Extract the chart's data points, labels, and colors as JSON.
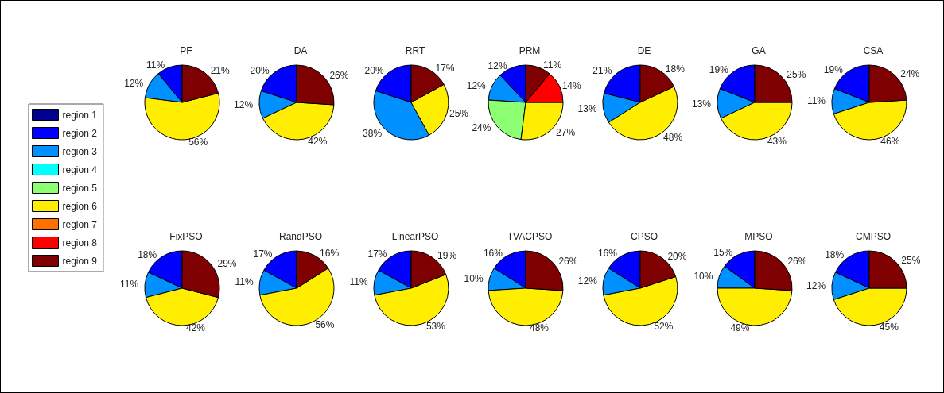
{
  "chart_data": {
    "type": "pie",
    "legend": "left",
    "categories": [
      "region 1",
      "region 2",
      "region 3",
      "region 4",
      "region 5",
      "region 6",
      "region 7",
      "region 8",
      "region 9"
    ],
    "colors": [
      "#00008f",
      "#0000ff",
      "#0090ff",
      "#00ffff",
      "#8cff73",
      "#ffee00",
      "#ff7000",
      "#ff0000",
      "#7f0000"
    ],
    "series": [
      {
        "name": "PF",
        "values": [
          null,
          11,
          12,
          null,
          null,
          56,
          null,
          null,
          21
        ],
        "value_labels": [
          null,
          "11%",
          "12%",
          null,
          null,
          "56%",
          null,
          null,
          "21%"
        ]
      },
      {
        "name": "DA",
        "values": [
          null,
          20,
          12,
          null,
          null,
          42,
          null,
          null,
          26
        ],
        "value_labels": [
          null,
          "20%",
          "12%",
          null,
          null,
          "42%",
          null,
          null,
          "26%"
        ]
      },
      {
        "name": "RRT",
        "values": [
          null,
          20,
          38,
          null,
          null,
          25,
          null,
          null,
          17
        ],
        "value_labels": [
          null,
          "20%",
          "38%",
          null,
          null,
          "25%",
          null,
          null,
          "17%"
        ]
      },
      {
        "name": "PRM",
        "values": [
          null,
          12,
          12,
          null,
          24,
          27,
          null,
          14,
          11
        ],
        "value_labels": [
          null,
          "12%",
          "12%",
          null,
          "24%",
          "27%",
          null,
          "14%",
          "11%"
        ]
      },
      {
        "name": "DE",
        "values": [
          null,
          21,
          13,
          null,
          null,
          48,
          null,
          null,
          18
        ],
        "value_labels": [
          null,
          "21%",
          "13%",
          null,
          null,
          "48%",
          null,
          null,
          "18%"
        ]
      },
      {
        "name": "GA",
        "values": [
          null,
          19,
          13,
          null,
          null,
          43,
          null,
          null,
          25
        ],
        "value_labels": [
          null,
          "19%",
          "13%",
          null,
          null,
          "43%",
          null,
          null,
          "25%"
        ]
      },
      {
        "name": "CSA",
        "values": [
          null,
          19,
          11,
          null,
          null,
          46,
          null,
          null,
          24
        ],
        "value_labels": [
          null,
          "19%",
          "11%",
          null,
          null,
          "46%",
          null,
          null,
          "24%"
        ]
      },
      {
        "name": "FixPSO",
        "values": [
          null,
          18,
          11,
          null,
          null,
          42,
          null,
          null,
          29
        ],
        "value_labels": [
          null,
          "18%",
          "11%",
          null,
          null,
          "42%",
          null,
          null,
          "29%"
        ]
      },
      {
        "name": "RandPSO",
        "values": [
          null,
          17,
          11,
          null,
          null,
          56,
          null,
          null,
          16
        ],
        "value_labels": [
          null,
          "17%",
          "11%",
          null,
          null,
          "56%",
          null,
          null,
          "16%"
        ]
      },
      {
        "name": "LinearPSO",
        "values": [
          null,
          17,
          11,
          null,
          null,
          53,
          null,
          null,
          19
        ],
        "value_labels": [
          null,
          "17%",
          "11%",
          null,
          null,
          "53%",
          null,
          null,
          "19%"
        ]
      },
      {
        "name": "TVACPSO",
        "values": [
          null,
          16,
          10,
          null,
          null,
          48,
          null,
          null,
          26
        ],
        "value_labels": [
          null,
          "16%",
          "10%",
          null,
          null,
          "48%",
          null,
          null,
          "26%"
        ]
      },
      {
        "name": "CPSO",
        "values": [
          null,
          16,
          12,
          null,
          null,
          52,
          null,
          null,
          20
        ],
        "value_labels": [
          null,
          "16%",
          "12%",
          null,
          null,
          "52%",
          null,
          null,
          "20%"
        ]
      },
      {
        "name": "MPSO",
        "values": [
          null,
          15,
          10,
          null,
          null,
          49,
          null,
          null,
          26
        ],
        "value_labels": [
          null,
          "15%",
          "10%",
          null,
          null,
          "49%",
          null,
          null,
          "26%"
        ]
      },
      {
        "name": "CMPSO",
        "values": [
          null,
          18,
          12,
          null,
          null,
          45,
          null,
          null,
          25
        ],
        "value_labels": [
          null,
          "18%",
          "12%",
          null,
          null,
          "45%",
          null,
          null,
          "25%"
        ]
      }
    ]
  }
}
